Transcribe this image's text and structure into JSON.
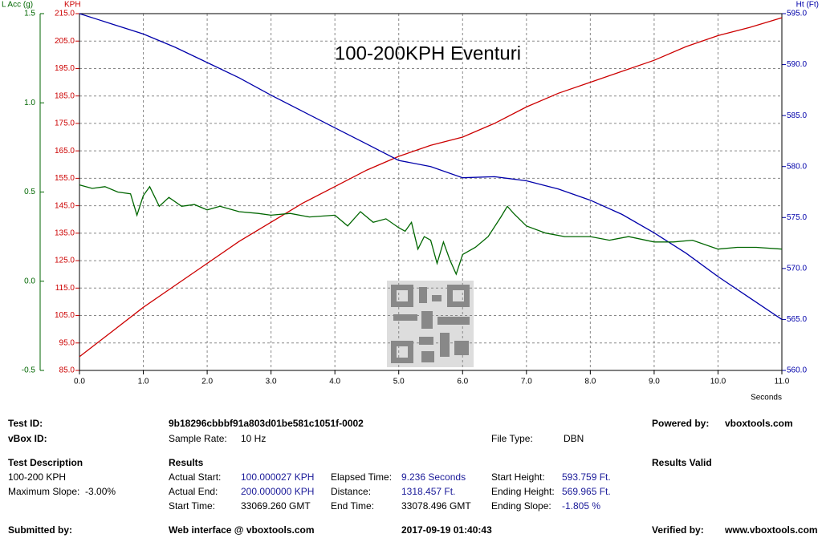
{
  "chart_data": {
    "type": "line",
    "title": "100-200KPH Eventuri",
    "xlabel": "Seconds",
    "ylabel": "KPH",
    "y2label": "Ht (Ft)",
    "y3label": "L Acc (g)",
    "xlim": [
      0,
      11
    ],
    "xticks": [
      {
        "value": 0,
        "label": "0.0"
      },
      {
        "value": 1,
        "label": "1.0"
      },
      {
        "value": 2,
        "label": "2.0"
      },
      {
        "value": 3,
        "label": "3.0"
      },
      {
        "value": 4,
        "label": "4.0"
      },
      {
        "value": 5,
        "label": "5.0"
      },
      {
        "value": 6,
        "label": "6.0"
      },
      {
        "value": 7,
        "label": "7.0"
      },
      {
        "value": 8,
        "label": "8.0"
      },
      {
        "value": 9,
        "label": "9.0"
      },
      {
        "value": 10,
        "label": "10.0"
      },
      {
        "value": 11,
        "label": "11.0"
      }
    ],
    "ylim": [
      85,
      215
    ],
    "yticks": [
      {
        "value": 85,
        "label": "85.0"
      },
      {
        "value": 95,
        "label": "95.0"
      },
      {
        "value": 105,
        "label": "105.0"
      },
      {
        "value": 115,
        "label": "115.0"
      },
      {
        "value": 125,
        "label": "125.0"
      },
      {
        "value": 135,
        "label": "135.0"
      },
      {
        "value": 145,
        "label": "145.0"
      },
      {
        "value": 155,
        "label": "155.0"
      },
      {
        "value": 165,
        "label": "165.0"
      },
      {
        "value": 175,
        "label": "175.0"
      },
      {
        "value": 185,
        "label": "185.0"
      },
      {
        "value": 195,
        "label": "195.0"
      },
      {
        "value": 205,
        "label": "205.0"
      },
      {
        "value": 215,
        "label": "215.0"
      }
    ],
    "y2lim": [
      560,
      595
    ],
    "y2ticks": [
      {
        "value": 560,
        "label": "560.0"
      },
      {
        "value": 565,
        "label": "565.0"
      },
      {
        "value": 570,
        "label": "570.0"
      },
      {
        "value": 575,
        "label": "575.0"
      },
      {
        "value": 580,
        "label": "580.0"
      },
      {
        "value": 585,
        "label": "585.0"
      },
      {
        "value": 590,
        "label": "590.0"
      },
      {
        "value": 595,
        "label": "595.0"
      }
    ],
    "y3lim": [
      -0.5,
      1.5
    ],
    "y3ticks": [
      -0.5,
      {
        "value": 0,
        "label": "0.0"
      },
      0.5,
      {
        "value": 1,
        "label": "1.0"
      },
      1.5
    ],
    "grid": true,
    "series": [
      {
        "axis": "y",
        "color": "#cc0000",
        "x": [
          0,
          0.5,
          1,
          1.5,
          2,
          2.5,
          3,
          3.5,
          4,
          4.5,
          5,
          5.5,
          6,
          6.5,
          7,
          7.5,
          8,
          8.5,
          9,
          9.5,
          10,
          10.5,
          11
        ],
        "values": [
          90,
          99,
          108,
          116,
          124,
          132,
          139,
          146,
          152,
          158,
          163,
          167,
          170,
          175,
          181,
          186,
          190,
          194,
          198,
          203,
          207,
          210,
          213.5
        ]
      },
      {
        "axis": "y2",
        "color": "#0000aa",
        "x": [
          0,
          0.5,
          1,
          1.5,
          2,
          2.5,
          3,
          3.5,
          4,
          4.5,
          5,
          5.5,
          6,
          6.5,
          7,
          7.5,
          8,
          8.5,
          9,
          9.5,
          10,
          10.5,
          11
        ],
        "values": [
          595,
          594,
          593,
          591.7,
          590.2,
          588.7,
          587,
          585.4,
          583.8,
          582.2,
          580.6,
          580,
          578.9,
          579,
          578.6,
          577.8,
          576.7,
          575.3,
          573.5,
          571.5,
          569.2,
          567.1,
          565
        ]
      },
      {
        "axis": "y3",
        "color": "#006600",
        "x": [
          0,
          0.2,
          0.4,
          0.6,
          0.8,
          0.9,
          1.0,
          1.1,
          1.25,
          1.4,
          1.6,
          1.8,
          2.0,
          2.2,
          2.5,
          2.8,
          3.0,
          3.3,
          3.6,
          4.0,
          4.2,
          4.4,
          4.6,
          4.8,
          5.0,
          5.1,
          5.2,
          5.3,
          5.4,
          5.5,
          5.6,
          5.7,
          5.8,
          5.9,
          6.0,
          6.2,
          6.4,
          6.6,
          6.7,
          6.8,
          7.0,
          7.3,
          7.6,
          8.0,
          8.3,
          8.6,
          9.0,
          9.3,
          9.6,
          10.0,
          10.3,
          10.6,
          11.0
        ],
        "values": [
          0.54,
          0.52,
          0.53,
          0.5,
          0.49,
          0.37,
          0.48,
          0.53,
          0.42,
          0.47,
          0.42,
          0.43,
          0.4,
          0.42,
          0.39,
          0.38,
          0.37,
          0.38,
          0.36,
          0.37,
          0.31,
          0.39,
          0.33,
          0.35,
          0.3,
          0.28,
          0.33,
          0.18,
          0.25,
          0.23,
          0.1,
          0.22,
          0.12,
          0.04,
          0.15,
          0.19,
          0.25,
          0.36,
          0.42,
          0.38,
          0.31,
          0.27,
          0.25,
          0.25,
          0.23,
          0.25,
          0.22,
          0.22,
          0.23,
          0.18,
          0.19,
          0.19,
          0.18
        ]
      }
    ]
  },
  "report": {
    "items": [
      "Test ID:",
      "9b18296cbbbf91a803d01be581c1051f-0002",
      "Powered by:",
      "vboxtools.com",
      "vBox ID:",
      "Sample Rate:",
      "10 Hz",
      "File Type:",
      "DBN",
      "Test Description",
      "Results",
      "Results Valid",
      "100-200 KPH",
      "Actual Start:",
      "100.000027 KPH",
      "Elapsed Time:",
      "9.236 Seconds",
      "Start Height:",
      "593.759 Ft.",
      "Maximum Slope:  -3.00%",
      "Actual End:",
      "200.000000 KPH",
      "Distance:",
      "1318.457 Ft.",
      "Ending Height:",
      "569.965 Ft.",
      "Start Time:",
      "33069.260 GMT",
      "End Time:",
      "33078.496 GMT",
      "Ending Slope:",
      "-1.805 %",
      "Submitted by:",
      "Web interface @ vboxtools.com",
      "2017-09-19 01:40:43",
      "Verified by:",
      "www.vboxtools.com"
    ]
  }
}
